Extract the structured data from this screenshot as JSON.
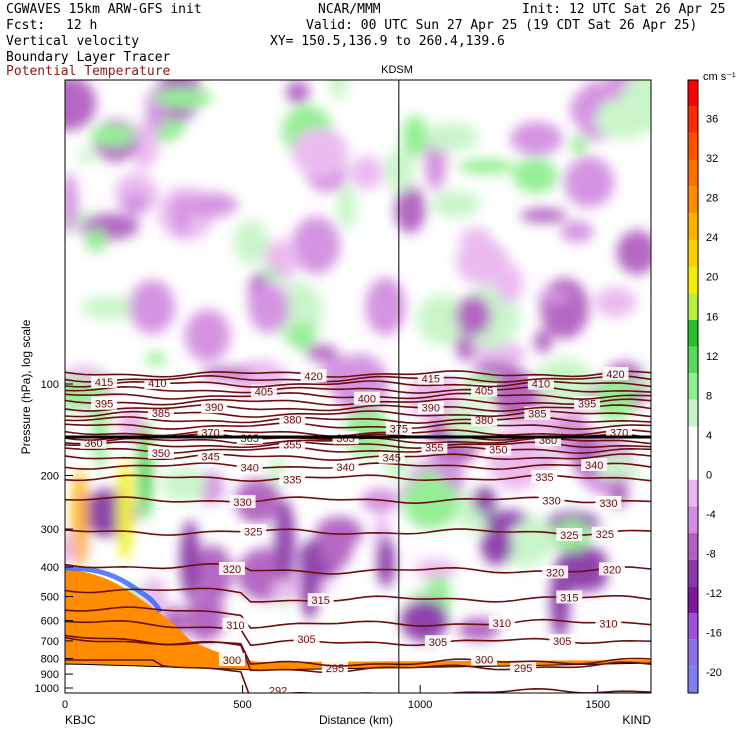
{
  "header": {
    "model": "CGWAVES 15km ARW-GFS init",
    "org": "NCAR/MMM",
    "init": "Init: 12 UTC Sat 26 Apr 25",
    "fcst_label": "Fcst:",
    "fcst_value": "12 h",
    "valid": "Valid: 00 UTC Sun 27 Apr 25 (19 CDT Sat 26 Apr 25)",
    "field1": "Vertical velocity",
    "field2": "Boundary Layer Tracer",
    "field3": "Potential Temperature",
    "xy": "XY= 150.5,136.9 to 260.4,139.6",
    "field3_color": "#8b1a1a"
  },
  "plot": {
    "top_label": "KDSM",
    "left_station": "KBJC",
    "right_station": "KIND"
  },
  "colorbar": {
    "units": "cm s⁻¹",
    "labels": [
      "36",
      "32",
      "28",
      "24",
      "20",
      "16",
      "12",
      "8",
      "4",
      "0",
      "-4",
      "-8",
      "-12",
      "-16",
      "-20"
    ]
  },
  "chart_data": {
    "type": "heatmap",
    "title": "",
    "xlabel": "Distance (km)",
    "ylabel": "Pressure (hPa), log scale",
    "xlim": [
      0,
      1650
    ],
    "ylim": [
      1000,
      40
    ],
    "y_scale": "log",
    "x_ticks": [
      0,
      500,
      1000,
      1500
    ],
    "y_ticks": [
      100,
      200,
      300,
      400,
      500,
      600,
      700,
      800,
      900,
      1000
    ],
    "station_marker_km": 940,
    "colorbar_range": [
      -22,
      40
    ],
    "colorbar_colors": [
      "#7f7ff0",
      "#8f6fe8",
      "#9a50d8",
      "#7a1a9a",
      "#8a3aa8",
      "#b060c0",
      "#d28fe0",
      "#eab8f0",
      "#ffffff",
      "#ffffff",
      "#c8f5c8",
      "#90ee90",
      "#5ad85a",
      "#28c028",
      "#b8f040",
      "#f0f000",
      "#ffd000",
      "#ffb000",
      "#ff8c00",
      "#ff7000",
      "#ff5000",
      "#ff2a00",
      "#ff0000"
    ],
    "isentropes": [
      {
        "theta": 292,
        "label_km": [
          600
        ]
      },
      {
        "theta": 295,
        "label_km": [
          760,
          1290
        ]
      },
      {
        "theta": 300,
        "label_km": [
          470,
          1180
        ]
      },
      {
        "theta": 305,
        "label_km": [
          680,
          1050,
          1400
        ]
      },
      {
        "theta": 310,
        "label_km": [
          480,
          1230,
          1530
        ]
      },
      {
        "theta": 315,
        "label_km": [
          720,
          1420
        ]
      },
      {
        "theta": 320,
        "label_km": [
          470,
          1380,
          1540
        ]
      },
      {
        "theta": 325,
        "label_km": [
          530,
          1420,
          1520
        ]
      },
      {
        "theta": 330,
        "label_km": [
          500,
          1370,
          1530
        ]
      },
      {
        "theta": 335,
        "label_km": [
          640,
          1350
        ]
      },
      {
        "theta": 340,
        "label_km": [
          520,
          790,
          1490
        ]
      },
      {
        "theta": 345,
        "label_km": [
          410,
          920
        ]
      },
      {
        "theta": 350,
        "label_km": [
          270,
          1220
        ]
      },
      {
        "theta": 355,
        "label_km": [
          640,
          1040
        ]
      },
      {
        "theta": 360,
        "label_km": [
          80,
          1360
        ]
      },
      {
        "theta": 365,
        "label_km": [
          520,
          790
        ]
      },
      {
        "theta": 370,
        "label_km": [
          410,
          1560
        ]
      },
      {
        "theta": 375,
        "label_km": [
          940
        ]
      },
      {
        "theta": 380,
        "label_km": [
          640,
          1180
        ]
      },
      {
        "theta": 385,
        "label_km": [
          270,
          1330
        ]
      },
      {
        "theta": 390,
        "label_km": [
          420,
          1030
        ]
      },
      {
        "theta": 395,
        "label_km": [
          110,
          1470
        ]
      },
      {
        "theta": 400,
        "label_km": [
          850
        ]
      },
      {
        "theta": 405,
        "label_km": [
          560,
          1180
        ]
      },
      {
        "theta": 410,
        "label_km": [
          260,
          1340
        ]
      },
      {
        "theta": 415,
        "label_km": [
          110,
          1030
        ]
      },
      {
        "theta": 420,
        "label_km": [
          700,
          1550
        ]
      }
    ]
  }
}
